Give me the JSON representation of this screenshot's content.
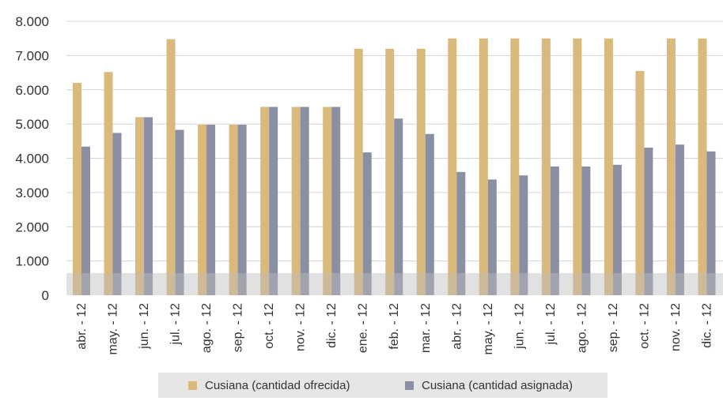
{
  "chart_data": {
    "type": "bar",
    "categories": [
      "abr. - 12",
      "may. - 12",
      "jun. - 12",
      "jul. - 12",
      "ago. - 12",
      "sep. - 12",
      "oct. - 12",
      "nov. - 12",
      "dic. - 12",
      "ene. - 12",
      "feb. - 12",
      "mar. - 12",
      "abr. - 12",
      "may. - 12",
      "jun. - 12",
      "jul. - 12",
      "ago. - 12",
      "sep. - 12",
      "oct. - 12",
      "nov. - 12",
      "dic. - 12"
    ],
    "series": [
      {
        "name": "Cusiana (cantidad ofrecida)",
        "color": "#d9b97c",
        "values": [
          6200,
          6520,
          5200,
          7480,
          4980,
          4980,
          5500,
          5500,
          5500,
          7200,
          7200,
          7200,
          7500,
          7500,
          7500,
          7500,
          7500,
          7500,
          6550,
          7500,
          7500
        ]
      },
      {
        "name": "Cusiana (cantidad asignada)",
        "color": "#8a8fa3",
        "values": [
          4340,
          4740,
          5200,
          4830,
          4980,
          4980,
          5500,
          5500,
          5500,
          4170,
          5160,
          4710,
          3600,
          3380,
          3500,
          3760,
          3760,
          3810,
          4310,
          4400,
          4200
        ]
      }
    ],
    "y_ticks": [
      "0",
      "1.000",
      "2.000",
      "3.000",
      "4.000",
      "5.000",
      "6.000",
      "7.000",
      "8.000"
    ],
    "ylim": [
      0,
      8000
    ],
    "grid": true,
    "legend_position": "bottom",
    "grid_color": "#d4d4d4",
    "baseline_shadow_color": "#bdbdbd"
  }
}
